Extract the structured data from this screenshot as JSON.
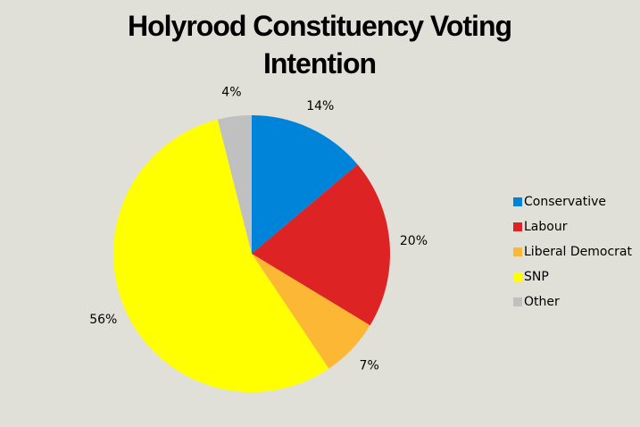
{
  "chart_data": {
    "type": "pie",
    "title": "Holyrood Constituency Voting Intention",
    "categories": [
      "Conservative",
      "Labour",
      "Liberal Democrat",
      "SNP",
      "Other"
    ],
    "values": [
      14,
      20,
      7,
      56,
      4
    ],
    "value_labels": [
      "14%",
      "20%",
      "7%",
      "56%",
      "4%"
    ],
    "colors": [
      "#0084d9",
      "#dd2323",
      "#fcb834",
      "#ffff00",
      "#c0c0c0"
    ],
    "legend": "right"
  }
}
